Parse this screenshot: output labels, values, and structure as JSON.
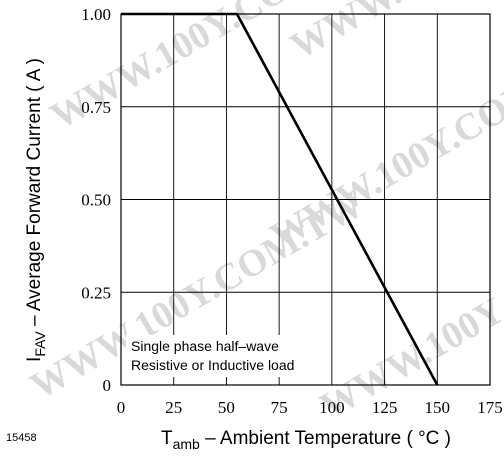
{
  "figure_id": "15458",
  "watermark_text": "WWW.100Y.COM.TW",
  "chart_data": {
    "type": "line",
    "title": "",
    "xlabel": {
      "main": "T",
      "subscript": "amb",
      "rest": " – Ambient Temperature ( °C )"
    },
    "ylabel": {
      "main": "I",
      "subscript": "FAV",
      "rest": " – Average Forward Current ( A )"
    },
    "xlim": [
      0,
      175
    ],
    "ylim": [
      0,
      1.0
    ],
    "x_ticks": [
      0,
      25,
      50,
      75,
      100,
      125,
      150,
      175
    ],
    "x_tick_labels": [
      "0",
      "25",
      "50",
      "75",
      "100",
      "125",
      "150",
      "175"
    ],
    "y_ticks": [
      0,
      0.25,
      0.5,
      0.75,
      1.0
    ],
    "y_tick_labels": [
      "0",
      "0.25",
      "0.50",
      "0.75",
      "1.00"
    ],
    "grid": true,
    "annotations": [
      "Single phase half–wave",
      "Resistive or Inductive load"
    ],
    "series": [
      {
        "x": [
          0,
          55,
          150
        ],
        "y": [
          1.0,
          1.0,
          0
        ]
      }
    ],
    "colors": {
      "line": "#000000",
      "grid": "#000000",
      "note_background": "#ffffff"
    }
  }
}
